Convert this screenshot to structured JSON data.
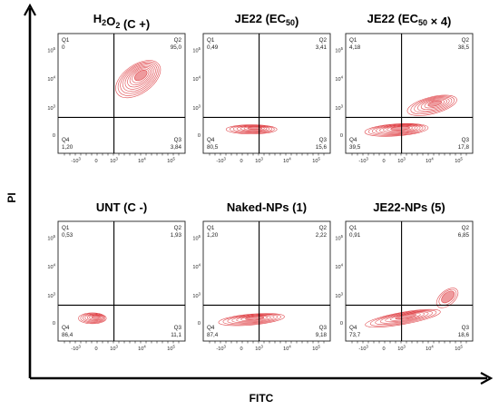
{
  "axes": {
    "xlabel": "FITC",
    "ylabel": "PI"
  },
  "tick_labels": {
    "x": [
      "-10",
      "0",
      "10",
      "10",
      "10"
    ],
    "x_exp": [
      "3",
      "",
      "3",
      "4",
      "5"
    ],
    "y": [
      "0",
      "10",
      "10",
      "10"
    ],
    "y_exp": [
      "",
      "3",
      "4",
      "5"
    ]
  },
  "quadrant_names": [
    "Q1",
    "Q2",
    "Q3",
    "Q4"
  ],
  "colors": {
    "contour": "#e0474c",
    "axis": "#000000",
    "frame": "#222222"
  },
  "chart_data": [
    {
      "type": "contour",
      "title": "H2O2 (C +)",
      "title_main": "H",
      "title_sub1": "2",
      "title_mid": "O",
      "title_sub2": "2",
      "title_end": "  (C +)",
      "quadrants": {
        "Q1": "0",
        "Q2": "95,0",
        "Q3": "3,84",
        "Q4": "1,20"
      }
    },
    {
      "type": "contour",
      "title": "JE22 (EC50)",
      "title_main": "JE22 (EC",
      "title_sub1": "50",
      "title_end": ")",
      "quadrants": {
        "Q1": "0,49",
        "Q2": "3,41",
        "Q3": "15,6",
        "Q4": "80,5"
      }
    },
    {
      "type": "contour",
      "title": "JE22 (EC50 × 4)",
      "title_main": "JE22 (EC",
      "title_sub1": "50",
      "title_end": " × 4)",
      "quadrants": {
        "Q1": "4,18",
        "Q2": "38,5",
        "Q3": "17,8",
        "Q4": "39,5"
      }
    },
    {
      "type": "contour",
      "title": "UNT (C -)",
      "title_main": "UNT (C -)",
      "quadrants": {
        "Q1": "0,53",
        "Q2": "1,93",
        "Q3": "11,1",
        "Q4": "86,4"
      }
    },
    {
      "type": "contour",
      "title": "Naked-NPs (1)",
      "title_main": "Naked-NPs (1)",
      "quadrants": {
        "Q1": "1,20",
        "Q2": "2,22",
        "Q3": "9,18",
        "Q4": "87,4"
      }
    },
    {
      "type": "contour",
      "title": "JE22-NPs (5)",
      "title_main": "JE22-NPs (5)",
      "quadrants": {
        "Q1": "0,91",
        "Q2": "6,85",
        "Q3": "18,6",
        "Q4": "73,7"
      }
    }
  ]
}
